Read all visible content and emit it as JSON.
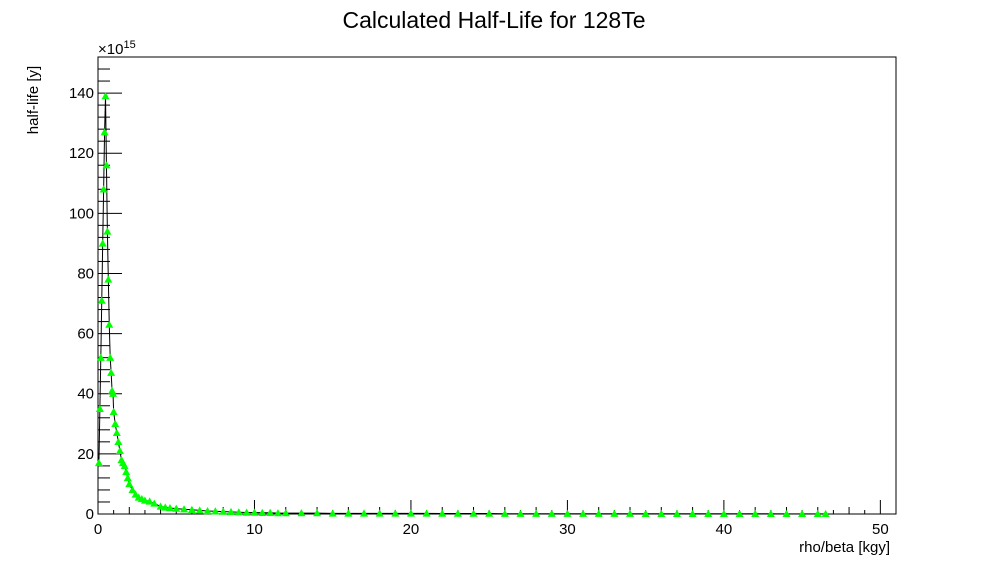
{
  "chart_data": {
    "type": "scatter",
    "title": "Calculated Half-Life for 128Te",
    "xlabel": "rho/beta [kgy]",
    "ylabel": "half-life [y]",
    "y_multiplier_label": "×10",
    "y_multiplier_exponent": "15",
    "xlim": [
      0,
      51
    ],
    "ylim": [
      0,
      152
    ],
    "x_ticks": [
      0,
      10,
      20,
      30,
      40,
      50
    ],
    "y_ticks": [
      0,
      20,
      40,
      60,
      80,
      100,
      120,
      140
    ],
    "x_tick_labels": [
      "0",
      "10",
      "20",
      "30",
      "40",
      "50"
    ],
    "y_tick_labels": [
      "0",
      "20",
      "40",
      "60",
      "80",
      "100",
      "120",
      "140"
    ],
    "grid": false,
    "legend": "none",
    "marker": "triangle-up",
    "series": [
      {
        "color": "#00ff00",
        "x": [
          0.06,
          0.12,
          0.18,
          0.24,
          0.3,
          0.36,
          0.42,
          0.48,
          0.54,
          0.6,
          0.66,
          0.72,
          0.78,
          0.84,
          0.9,
          0.96,
          1.0,
          1.1,
          1.2,
          1.3,
          1.4,
          1.5,
          1.6,
          1.7,
          1.8,
          1.9,
          2.0,
          2.2,
          2.4,
          2.6,
          2.8,
          3.0,
          3.3,
          3.6,
          4.0,
          4.3,
          4.6,
          5.0,
          5.5,
          6.0,
          6.5,
          7.0,
          7.5,
          8.0,
          8.5,
          9.0,
          9.5,
          10.0,
          10.5,
          11.0,
          11.5,
          12.0,
          13.0,
          14.0,
          15.0,
          16.0,
          17.0,
          18.0,
          19.0,
          20.0,
          21.0,
          22.0,
          23.0,
          24.0,
          25.0,
          26.0,
          27.0,
          28.0,
          29.0,
          30.0,
          31.0,
          32.0,
          33.0,
          34.0,
          35.0,
          36.0,
          37.0,
          38.0,
          39.0,
          40.0,
          41.0,
          42.0,
          43.0,
          44.0,
          45.0,
          46.0,
          46.5
        ],
        "y": [
          17,
          35,
          52,
          71,
          90,
          108,
          127,
          139,
          116,
          94,
          78,
          63,
          52,
          47,
          41,
          40,
          34,
          30,
          27,
          24,
          21,
          18,
          17,
          16,
          14,
          12,
          10,
          8,
          6.5,
          5.5,
          5,
          4.5,
          4.2,
          3.5,
          2.5,
          2.2,
          2.0,
          1.8,
          1.6,
          1.4,
          1.2,
          1.0,
          0.9,
          0.8,
          0.7,
          0.6,
          0.5,
          0.5,
          0.4,
          0.4,
          0.3,
          0.3,
          0.3,
          0.3,
          0.2,
          0.2,
          0.2,
          0.2,
          0.2,
          0.2,
          0.2,
          0.15,
          0.15,
          0.15,
          0.15,
          0.1,
          0.1,
          0.1,
          0.1,
          0.1,
          0.1,
          0.1,
          0.1,
          0.1,
          0.08,
          0.08,
          0.08,
          0.08,
          0.08,
          0.07,
          0.07,
          0.07,
          0.07,
          0.06,
          0.06,
          0.06,
          0.06
        ]
      }
    ]
  }
}
